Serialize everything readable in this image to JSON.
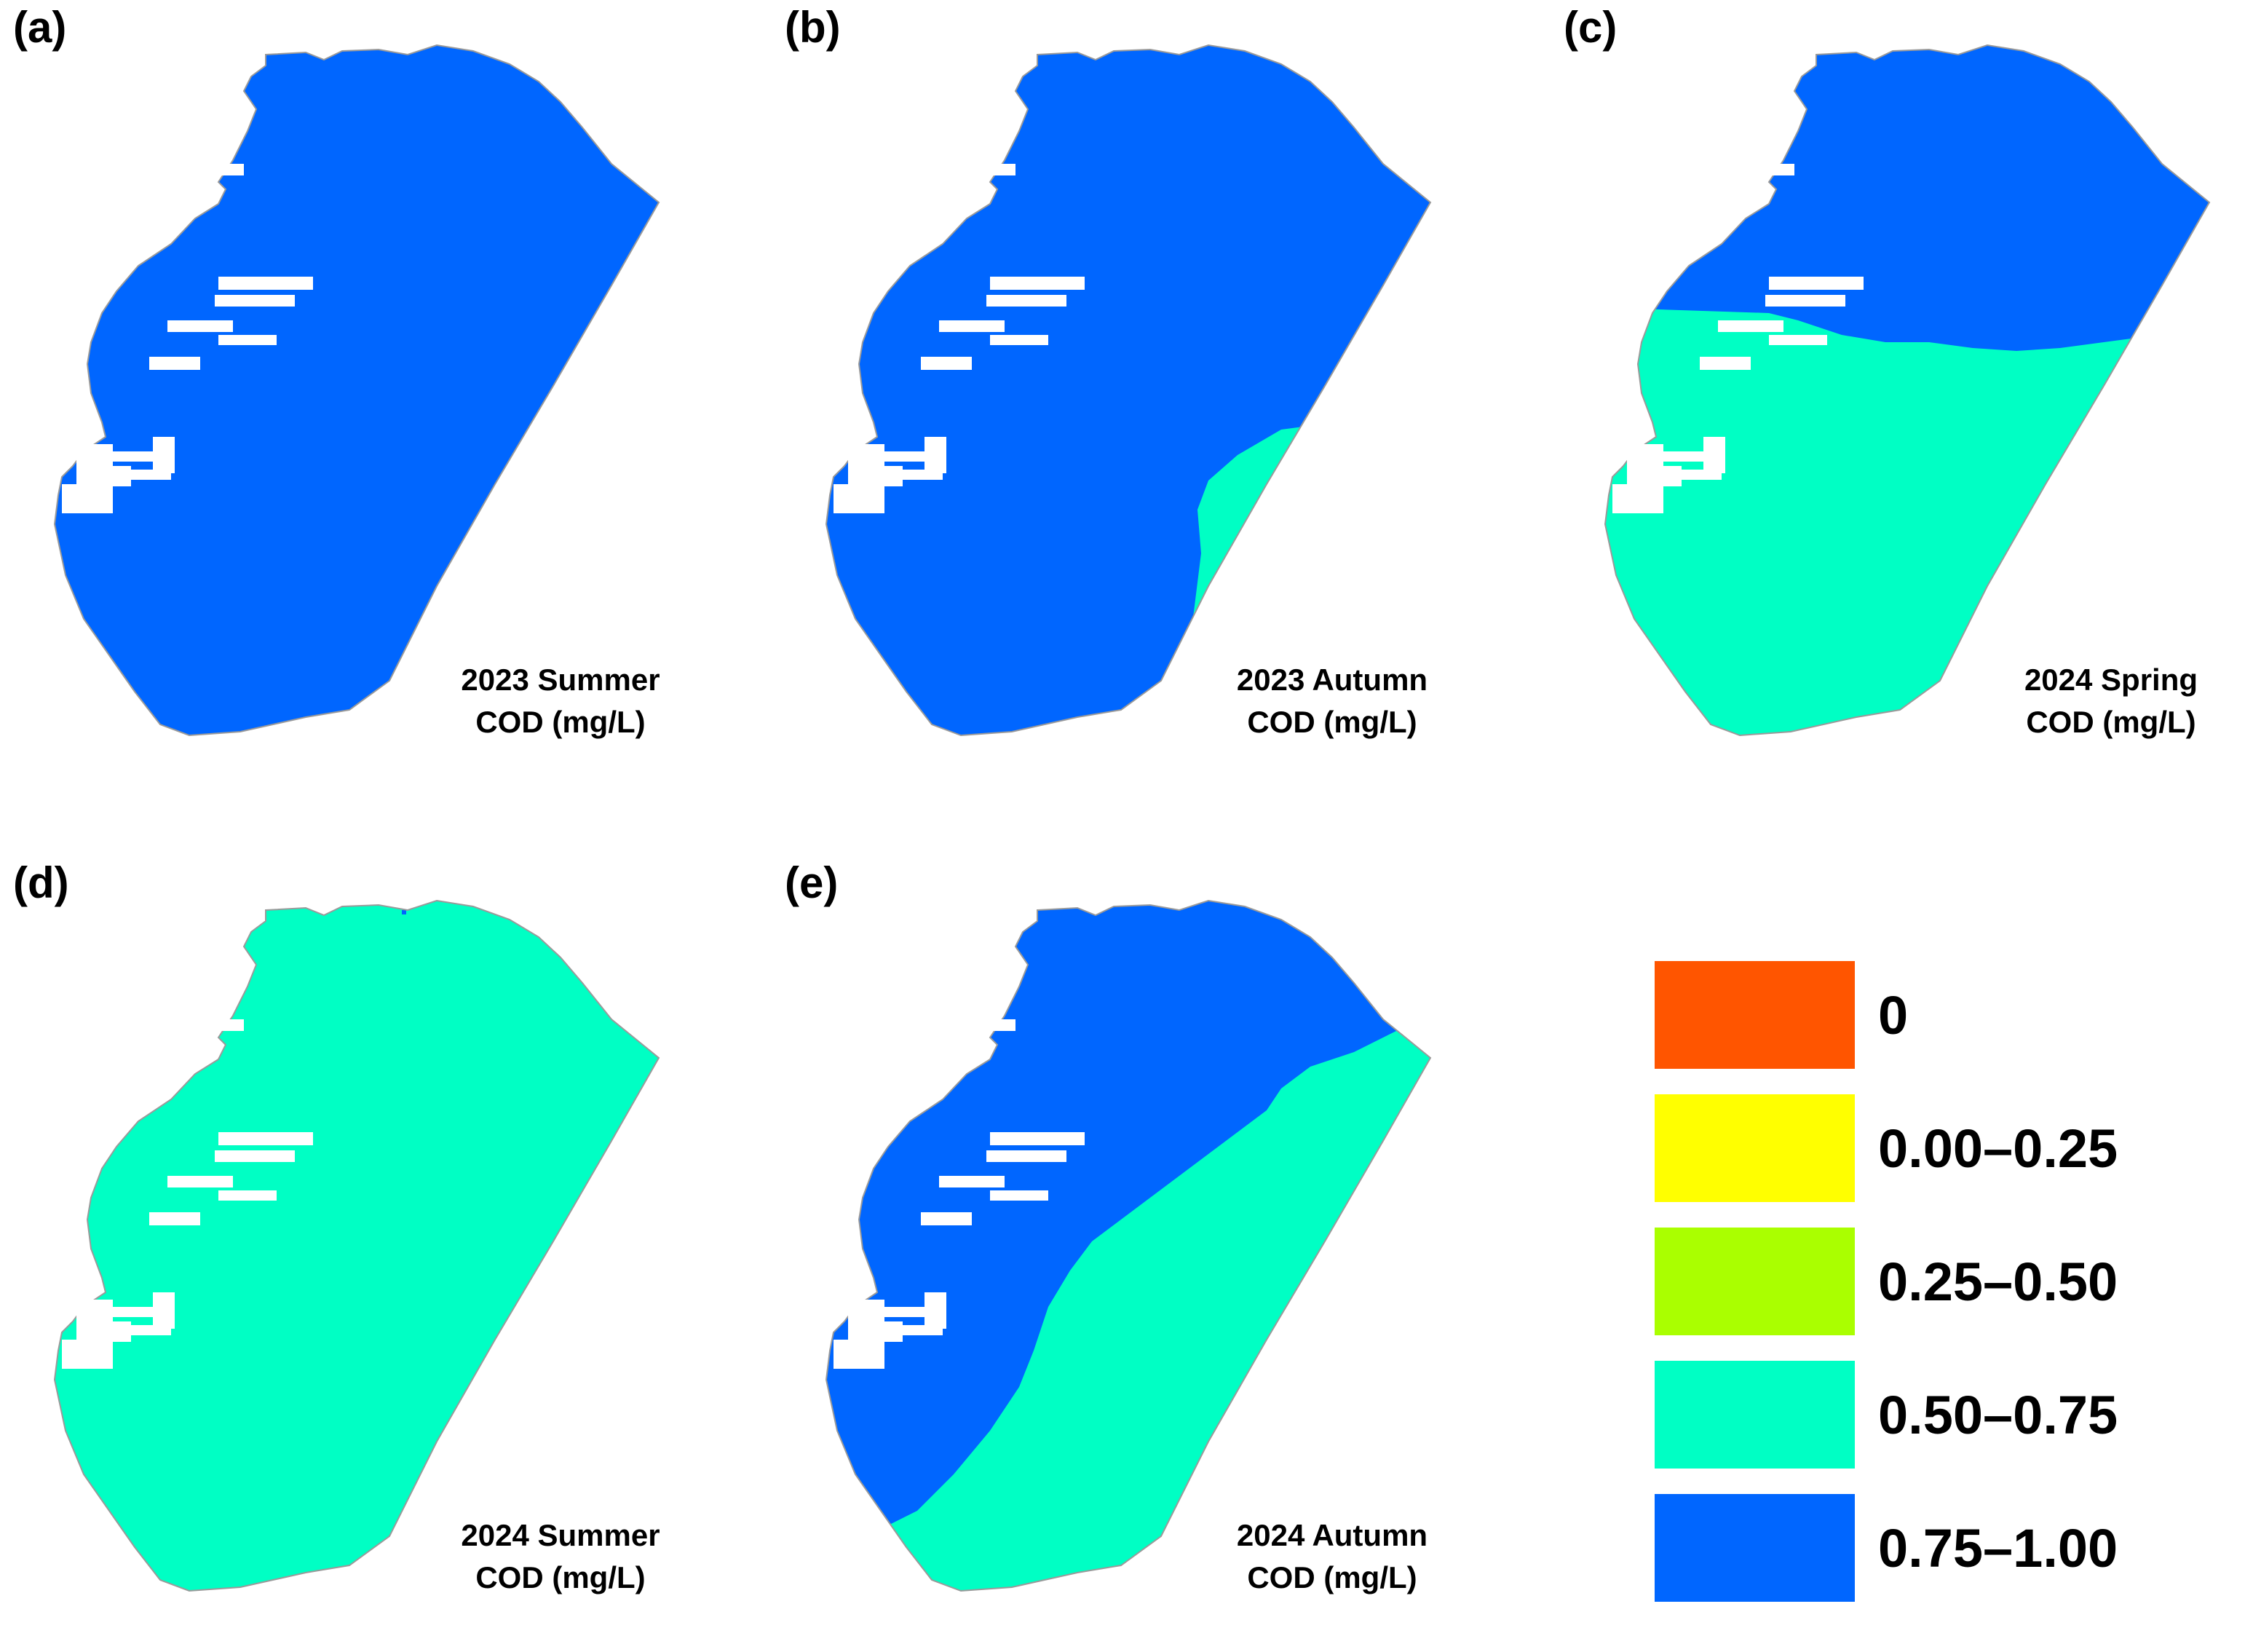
{
  "panels": [
    {
      "id": "a",
      "letter": "(a)",
      "caption_line1": "2023 Summer",
      "caption_line2": "COD (mg/L)",
      "pattern": "all-blue"
    },
    {
      "id": "b",
      "letter": "(b)",
      "caption_line1": "2023 Autumn",
      "caption_line2": "COD (mg/L)",
      "pattern": "blue-with-cyan-and-green-southeast"
    },
    {
      "id": "c",
      "letter": "(c)",
      "caption_line1": "2024 Spring",
      "caption_line2": "COD (mg/L)",
      "pattern": "blue-north-cyan-south"
    },
    {
      "id": "d",
      "letter": "(d)",
      "caption_line1": "2024 Summer",
      "caption_line2": "COD (mg/L)",
      "pattern": "all-cyan"
    },
    {
      "id": "e",
      "letter": "(e)",
      "caption_line1": "2024 Autumn",
      "caption_line2": "COD (mg/L)",
      "pattern": "blue-west-cyan-east"
    }
  ],
  "legend": [
    {
      "label": "0",
      "color": "#ff5500"
    },
    {
      "label": "0.00–0.25",
      "color": "#ffff00"
    },
    {
      "label": "0.25–0.50",
      "color": "#aaff00"
    },
    {
      "label": "0.50–0.75",
      "color": "#00ffc4"
    },
    {
      "label": "0.75–1.00",
      "color": "#0066ff"
    }
  ],
  "colors": {
    "blue": "#0066ff",
    "cyan": "#00ffc4",
    "green": "#aaff00"
  }
}
